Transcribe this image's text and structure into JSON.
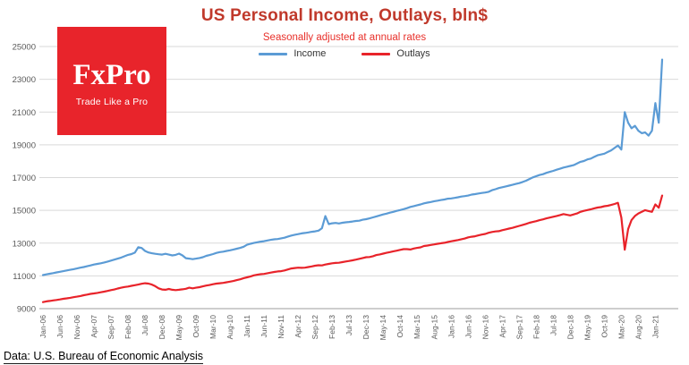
{
  "header": {
    "title": "US Personal Income, Outlays, bln$",
    "subtitle": "Seasonally adjusted at annual rates"
  },
  "legend": {
    "items": [
      {
        "label": "Income",
        "color": "#5b9bd5"
      },
      {
        "label": "Outlays",
        "color": "#e8232a"
      }
    ]
  },
  "logo": {
    "name": "FxPro",
    "tagline": "Trade Like a Pro"
  },
  "footer": {
    "source": "Data: U.S. Bureau of Economic Analysis"
  },
  "colors": {
    "title": "#c0392b",
    "subtitle": "#e8302a",
    "logo_bg": "#e8242b",
    "grid": "#d9d9d9",
    "axis_line": "#9e9e9e",
    "axis_text": "#595959"
  },
  "chart_data": {
    "type": "line",
    "title": "US Personal Income, Outlays, bln$",
    "subtitle": "Seasonally adjusted at annual rates",
    "ylabel": "bln$",
    "ylim": [
      9000,
      25000
    ],
    "ytick_step": 2000,
    "grid": true,
    "legend_position": "top",
    "x_label_every": 5,
    "x_tick_labels": [
      "Jan-06",
      "Jun-06",
      "Nov-06",
      "Apr-07",
      "Sep-07",
      "Feb-08",
      "Jul-08",
      "Dec-08",
      "May-09",
      "Oct-09",
      "Mar-10",
      "Aug-10",
      "Jan-11",
      "Jun-11",
      "Nov-11",
      "Apr-12",
      "Sep-12",
      "Feb-13",
      "Jul-13",
      "Dec-13",
      "May-14",
      "Oct-14",
      "Mar-15",
      "Aug-15",
      "Jan-16",
      "Jun-16",
      "Nov-16",
      "Apr-17",
      "Sep-17",
      "Feb-18",
      "Jul-18",
      "Dec-18",
      "May-19",
      "Oct-19",
      "Mar-20",
      "Aug-20",
      "Jan-21"
    ],
    "series": [
      {
        "name": "Income",
        "color": "#5b9bd5",
        "values": [
          11050,
          11090,
          11130,
          11170,
          11210,
          11250,
          11290,
          11330,
          11370,
          11410,
          11450,
          11500,
          11540,
          11590,
          11640,
          11690,
          11730,
          11770,
          11820,
          11870,
          11930,
          11990,
          12050,
          12120,
          12200,
          12280,
          12330,
          12420,
          12750,
          12700,
          12520,
          12430,
          12380,
          12350,
          12320,
          12300,
          12350,
          12300,
          12250,
          12280,
          12360,
          12250,
          12080,
          12050,
          12020,
          12050,
          12090,
          12140,
          12220,
          12270,
          12330,
          12400,
          12450,
          12480,
          12520,
          12560,
          12610,
          12660,
          12710,
          12780,
          12900,
          12960,
          13010,
          13050,
          13090,
          13120,
          13160,
          13200,
          13230,
          13250,
          13290,
          13330,
          13400,
          13460,
          13510,
          13550,
          13590,
          13620,
          13650,
          13690,
          13720,
          13760,
          13910,
          14650,
          14160,
          14210,
          14230,
          14200,
          14240,
          14270,
          14290,
          14320,
          14350,
          14370,
          14430,
          14460,
          14510,
          14570,
          14630,
          14690,
          14750,
          14800,
          14860,
          14910,
          14970,
          15020,
          15070,
          15130,
          15210,
          15260,
          15310,
          15360,
          15430,
          15470,
          15510,
          15560,
          15590,
          15630,
          15660,
          15710,
          15730,
          15760,
          15800,
          15840,
          15870,
          15900,
          15960,
          15990,
          16030,
          16060,
          16090,
          16130,
          16230,
          16290,
          16360,
          16410,
          16460,
          16510,
          16560,
          16610,
          16660,
          16730,
          16810,
          16910,
          17010,
          17090,
          17160,
          17210,
          17290,
          17350,
          17410,
          17480,
          17540,
          17610,
          17660,
          17710,
          17760,
          17860,
          17960,
          18010,
          18110,
          18160,
          18260,
          18360,
          18410,
          18460,
          18560,
          18660,
          18810,
          18960,
          18710,
          21000,
          20350,
          20010,
          20160,
          19860,
          19710,
          19760,
          19560,
          19860,
          21550,
          20350,
          24200
        ]
      },
      {
        "name": "Outlays",
        "color": "#e8232a",
        "values": [
          9400,
          9440,
          9470,
          9500,
          9530,
          9560,
          9600,
          9630,
          9660,
          9700,
          9730,
          9770,
          9820,
          9860,
          9900,
          9930,
          9960,
          10000,
          10040,
          10080,
          10130,
          10170,
          10230,
          10280,
          10320,
          10350,
          10390,
          10430,
          10470,
          10520,
          10550,
          10530,
          10470,
          10370,
          10240,
          10170,
          10150,
          10200,
          10150,
          10130,
          10150,
          10180,
          10210,
          10280,
          10240,
          10280,
          10310,
          10360,
          10410,
          10440,
          10490,
          10530,
          10550,
          10570,
          10610,
          10650,
          10690,
          10740,
          10790,
          10860,
          10910,
          10960,
          11030,
          11070,
          11100,
          11120,
          11160,
          11200,
          11240,
          11270,
          11290,
          11330,
          11390,
          11450,
          11480,
          11500,
          11490,
          11500,
          11540,
          11580,
          11620,
          11650,
          11640,
          11690,
          11730,
          11770,
          11790,
          11800,
          11840,
          11880,
          11910,
          11950,
          11990,
          12040,
          12090,
          12140,
          12150,
          12200,
          12270,
          12310,
          12360,
          12410,
          12450,
          12500,
          12540,
          12590,
          12630,
          12630,
          12610,
          12670,
          12710,
          12740,
          12820,
          12850,
          12890,
          12920,
          12960,
          12990,
          13020,
          13070,
          13110,
          13150,
          13190,
          13240,
          13280,
          13350,
          13390,
          13420,
          13470,
          13520,
          13560,
          13630,
          13680,
          13710,
          13730,
          13790,
          13840,
          13890,
          13930,
          13990,
          14050,
          14110,
          14170,
          14240,
          14290,
          14340,
          14400,
          14450,
          14510,
          14560,
          14610,
          14660,
          14710,
          14770,
          14730,
          14690,
          14750,
          14810,
          14910,
          14970,
          15020,
          15060,
          15120,
          15170,
          15200,
          15250,
          15280,
          15330,
          15390,
          15460,
          14560,
          12600,
          13860,
          14410,
          14660,
          14810,
          14910,
          15010,
          14960,
          14910,
          15360,
          15160,
          15900
        ]
      }
    ]
  }
}
